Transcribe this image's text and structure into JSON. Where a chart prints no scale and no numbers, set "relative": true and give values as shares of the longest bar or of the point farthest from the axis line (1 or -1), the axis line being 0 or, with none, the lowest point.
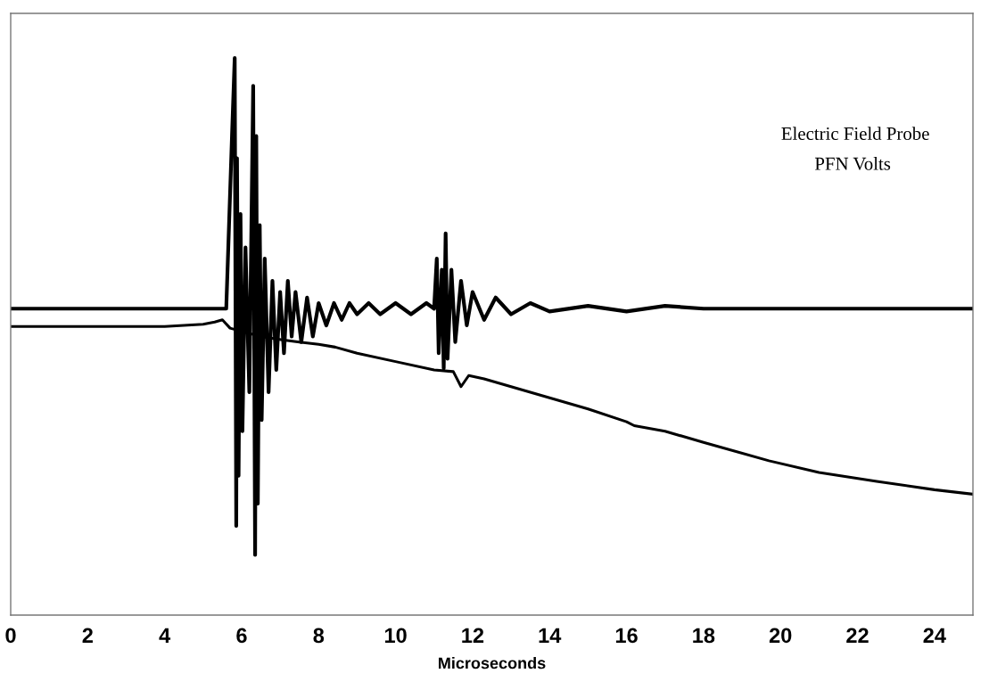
{
  "chart_data": {
    "type": "line",
    "relative": true,
    "xlabel": "Microseconds",
    "xlim": [
      0,
      25
    ],
    "xticks": [
      0,
      2,
      4,
      6,
      8,
      10,
      12,
      14,
      16,
      18,
      20,
      22,
      24
    ],
    "grid": false,
    "legend": false,
    "annotations": [
      "Electric Field Probe",
      "PFN Volts"
    ],
    "series": [
      {
        "color": "#000000",
        "x": [
          0,
          2,
          4,
          5.6,
          5.75,
          5.82,
          5.86,
          5.88,
          5.92,
          5.97,
          6.02,
          6.1,
          6.2,
          6.3,
          6.35,
          6.38,
          6.42,
          6.47,
          6.52,
          6.6,
          6.7,
          6.8,
          6.9,
          7.0,
          7.1,
          7.2,
          7.3,
          7.4,
          7.55,
          7.7,
          7.85,
          8.0,
          8.2,
          8.4,
          8.6,
          8.8,
          9.0,
          9.3,
          9.6,
          10.0,
          10.4,
          10.8,
          11.0,
          11.07,
          11.12,
          11.2,
          11.25,
          11.3,
          11.35,
          11.45,
          11.55,
          11.7,
          11.85,
          12.0,
          12.3,
          12.6,
          13.0,
          13.5,
          14.0,
          15.0,
          16.0,
          17.0,
          18.0,
          20.0,
          22.0,
          24.0,
          25.0
        ],
        "values": [
          0.55,
          0.55,
          0.55,
          0.55,
          0.86,
          1.0,
          0.16,
          0.82,
          0.25,
          0.72,
          0.33,
          0.66,
          0.4,
          0.95,
          0.108,
          0.86,
          0.2,
          0.7,
          0.35,
          0.64,
          0.4,
          0.6,
          0.44,
          0.58,
          0.47,
          0.6,
          0.5,
          0.58,
          0.49,
          0.57,
          0.5,
          0.56,
          0.52,
          0.56,
          0.53,
          0.56,
          0.54,
          0.56,
          0.54,
          0.56,
          0.54,
          0.56,
          0.55,
          0.64,
          0.47,
          0.62,
          0.443,
          0.685,
          0.46,
          0.62,
          0.49,
          0.6,
          0.52,
          0.58,
          0.53,
          0.57,
          0.54,
          0.56,
          0.545,
          0.555,
          0.545,
          0.555,
          0.55,
          0.55,
          0.55,
          0.55,
          0.55
        ]
      },
      {
        "color": "#000000",
        "x": [
          0,
          2,
          4,
          5.0,
          5.3,
          5.5,
          5.7,
          6.5,
          7.06,
          7.5,
          8.0,
          8.43,
          9.0,
          10.0,
          11.0,
          11.5,
          11.7,
          11.9,
          12.3,
          13.0,
          14.0,
          15.0,
          16.0,
          16.2,
          17.0,
          18.0,
          19.7,
          21.0,
          22.5,
          24.0,
          25.0
        ],
        "values": [
          0.518,
          0.518,
          0.518,
          0.522,
          0.526,
          0.53,
          0.515,
          0.5,
          0.494,
          0.49,
          0.486,
          0.481,
          0.47,
          0.455,
          0.44,
          0.437,
          0.41,
          0.43,
          0.424,
          0.41,
          0.39,
          0.37,
          0.347,
          0.34,
          0.33,
          0.31,
          0.277,
          0.256,
          0.24,
          0.225,
          0.217
        ]
      }
    ]
  }
}
